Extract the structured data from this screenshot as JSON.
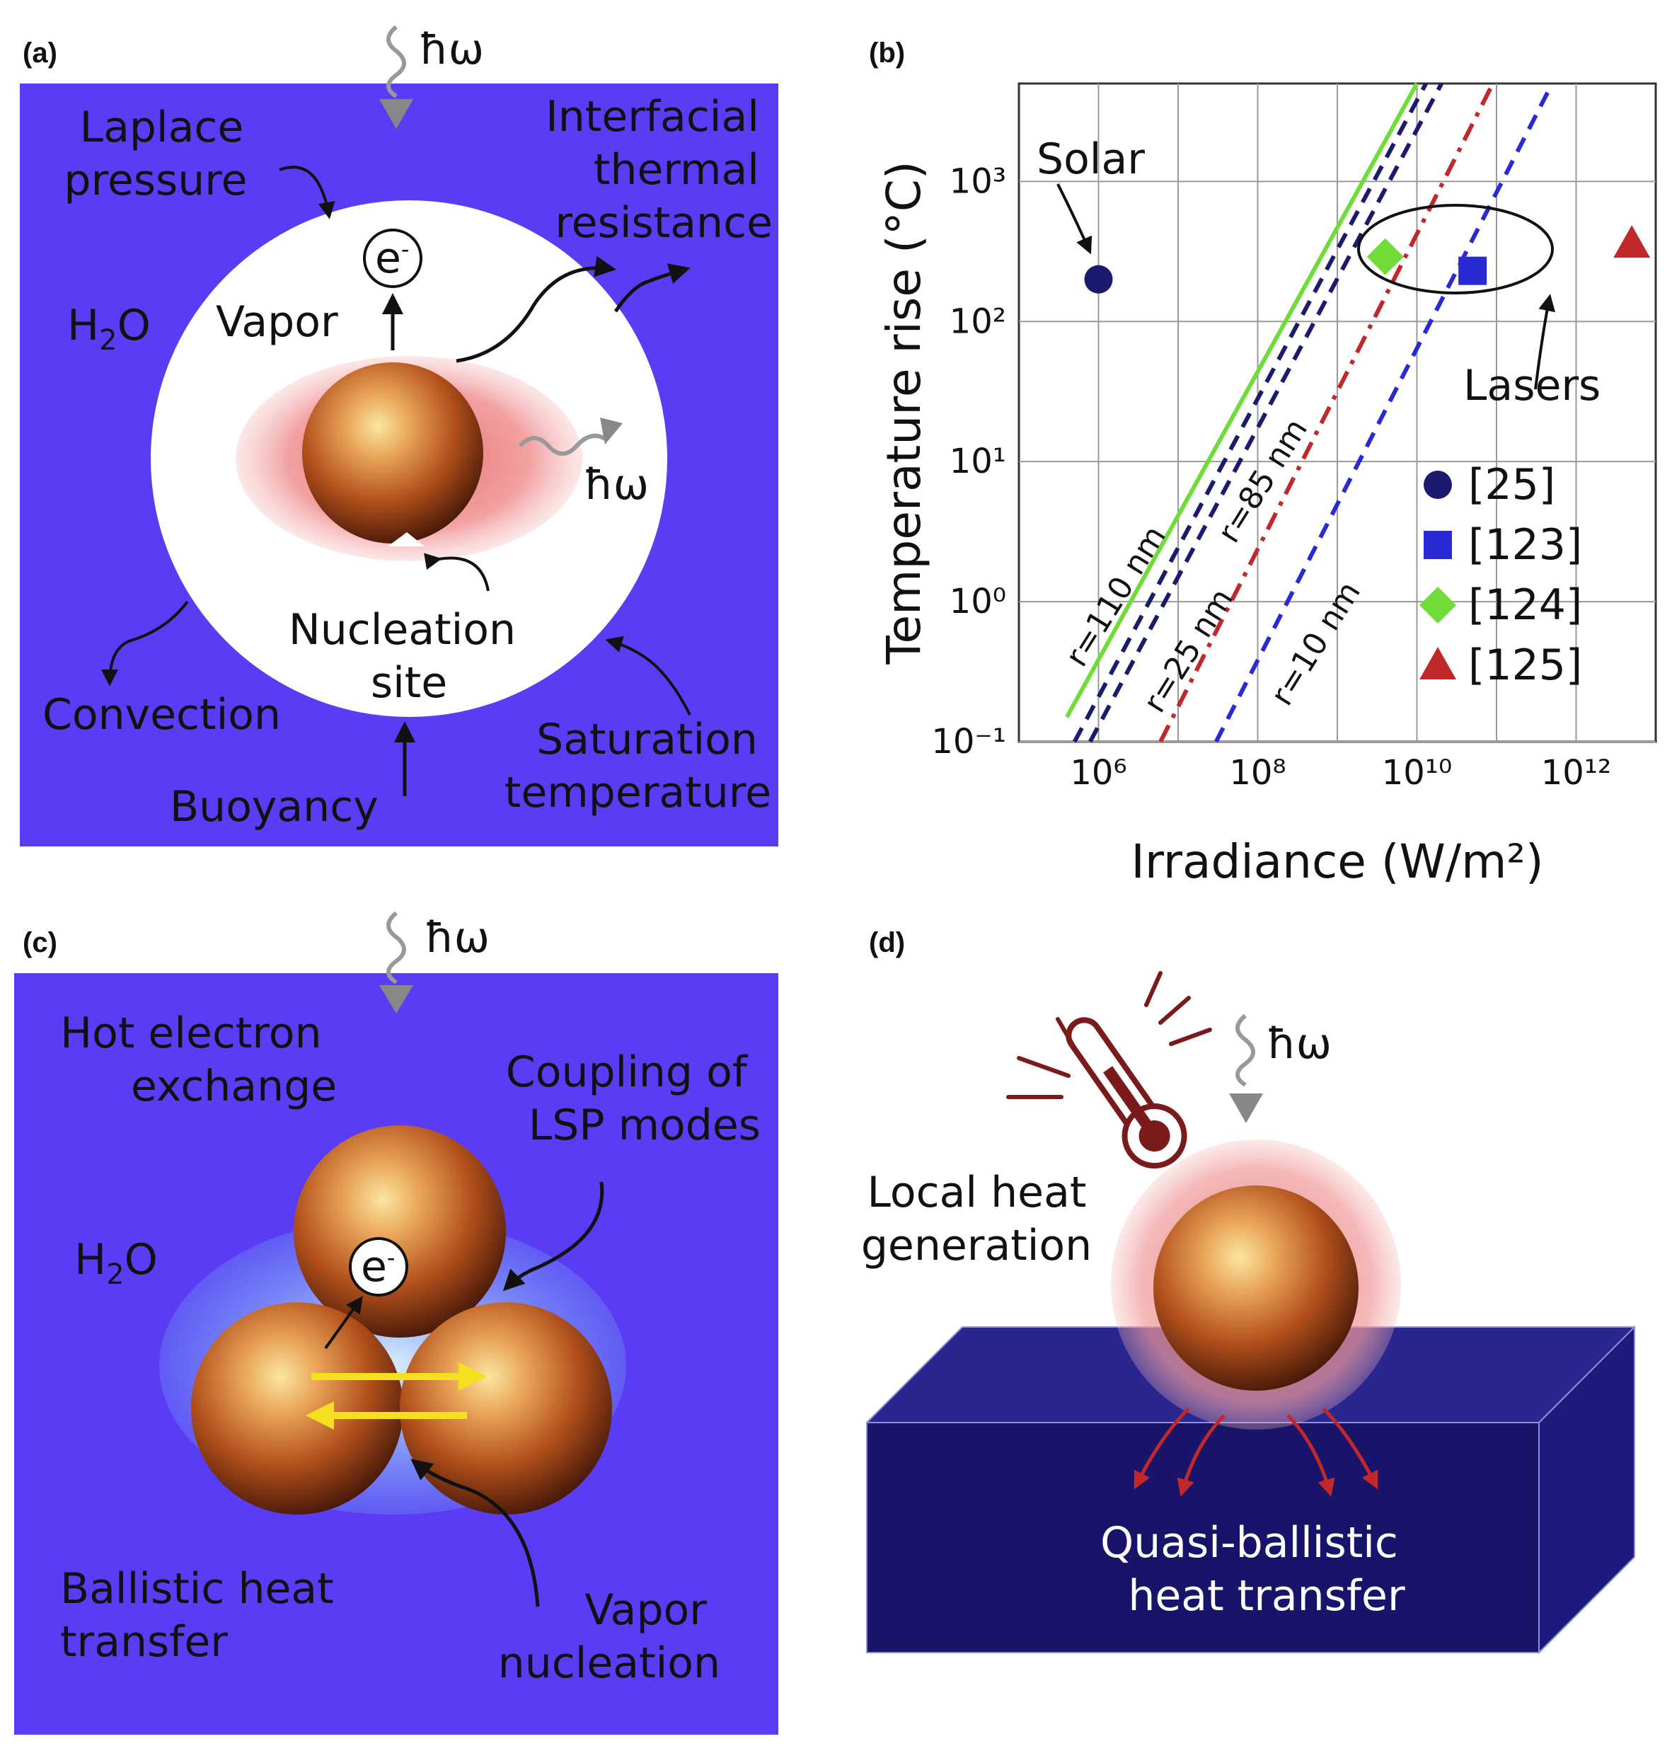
{
  "panels": {
    "a": {
      "label": "(a)",
      "photon": "ħω",
      "laplace": [
        "Laplace",
        "pressure"
      ],
      "interfacial": [
        "Interfacial",
        "thermal",
        "resistance"
      ],
      "electron": "e",
      "electron_sup": "-",
      "vapor": "Vapor",
      "water": "H",
      "water_sub": "2",
      "water_end": "O",
      "photon_emit": "ħω",
      "nucleation": [
        "Nucleation",
        "site"
      ],
      "convection": "Convection",
      "buoyancy": "Buoyancy",
      "saturation": [
        "Saturation",
        "temperature"
      ]
    },
    "b": {
      "label": "(b)"
    },
    "c": {
      "label": "(c)",
      "photon": "ħω",
      "hot_electron": [
        "Hot electron",
        "exchange"
      ],
      "coupling": [
        "Coupling of",
        "LSP modes"
      ],
      "water": "H",
      "water_sub": "2",
      "water_end": "O",
      "electron": "e",
      "electron_sup": "-",
      "ballistic": [
        "Ballistic heat",
        "transfer"
      ],
      "vapor_nucleation": [
        "Vapor",
        "nucleation"
      ]
    },
    "d": {
      "label": "(d)",
      "photon": "ħω",
      "local_heat": [
        "Local heat",
        "generation"
      ],
      "quasi": [
        "Quasi-ballistic",
        "heat transfer"
      ]
    }
  },
  "colors": {
    "water_blue": "#5a3cf5",
    "substrate_navy": "#17146a",
    "green": "#6fdc3a",
    "navy_line": "#1a1a6e",
    "red_line": "#c0282a",
    "blue_line": "#2a2ad4"
  },
  "chart_data": {
    "type": "line",
    "xlabel": "Irradiance (W/m²)",
    "ylabel": "Temperature rise (°C)",
    "x_scale": "log",
    "y_scale": "log",
    "xlim": [
      100000.0,
      10000000000000.0
    ],
    "ylim": [
      0.1,
      5000
    ],
    "grid": true,
    "x_ticks": [
      "10⁶",
      "10⁸",
      "10¹⁰",
      "10¹²"
    ],
    "y_ticks": [
      "10⁻¹",
      "10⁰",
      "10¹",
      "10²",
      "10³"
    ],
    "series": [
      {
        "name": "r=110 nm",
        "style": "solid",
        "color": "#6fdc3a",
        "x": [
          400000.0,
          10000000000.0
        ],
        "y": [
          0.15,
          5000
        ]
      },
      {
        "name": "r=110 nm",
        "style": "dashed",
        "color": "#1a1a6e",
        "x": [
          500000.0,
          13000000000.0
        ],
        "y": [
          0.1,
          5000
        ]
      },
      {
        "name": "r=85 nm",
        "style": "dashed",
        "color": "#1a1a6e",
        "x": [
          500000.0,
          13000000000.0
        ],
        "y": [
          0.1,
          5000
        ]
      },
      {
        "name": "r=25 nm",
        "style": "dashdot",
        "color": "#c0282a",
        "x": [
          6000000.0,
          90000000000.0
        ],
        "y": [
          0.1,
          5000
        ]
      },
      {
        "name": "r=10 nm",
        "style": "dashed",
        "color": "#2a2ad4",
        "x": [
          30000000.0,
          500000000000.0
        ],
        "y": [
          0.1,
          5000
        ]
      }
    ],
    "line_labels": [
      "r=110 nm",
      "r=85 nm",
      "r=25 nm",
      "r=10 nm"
    ],
    "points": [
      {
        "ref": "[25]",
        "marker": "circle",
        "color": "#1a1a6e",
        "x": 1000000.0,
        "y": 200
      },
      {
        "ref": "[123]",
        "marker": "square",
        "color": "#2a2ad4",
        "x": 50000000000.0,
        "y": 230
      },
      {
        "ref": "[124]",
        "marker": "diamond",
        "color": "#6fdc3a",
        "x": 4000000000.0,
        "y": 290
      },
      {
        "ref": "[125]",
        "marker": "triangle",
        "color": "#c0282a",
        "x": 5000000000000.0,
        "y": 360
      }
    ],
    "annotations": [
      "Solar",
      "Lasers"
    ],
    "legend": [
      {
        "label": "[25]",
        "marker": "circle",
        "color": "#1a1a6e"
      },
      {
        "label": "[123]",
        "marker": "square",
        "color": "#2a2ad4"
      },
      {
        "label": "[124]",
        "marker": "diamond",
        "color": "#6fdc3a"
      },
      {
        "label": "[125]",
        "marker": "triangle",
        "color": "#c0282a"
      }
    ],
    "legend_position": "bottom-right"
  }
}
